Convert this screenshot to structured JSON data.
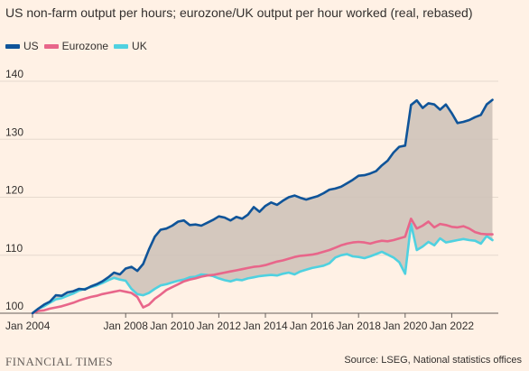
{
  "chart_data": {
    "type": "line",
    "title": "US non-farm output per hours; eurozone/UK output per hour worked (real, rebased)",
    "xlabel": "",
    "ylabel": "",
    "ylim": [
      100,
      140
    ],
    "yticks": [
      100,
      110,
      120,
      130,
      140
    ],
    "xlim": [
      2004.0,
      2024.0
    ],
    "xticks": [
      {
        "x": 2004,
        "label": "Jan 2004"
      },
      {
        "x": 2008,
        "label": "Jan 2008"
      },
      {
        "x": 2010,
        "label": "Jan 2010"
      },
      {
        "x": 2012,
        "label": "Jan 2012"
      },
      {
        "x": 2014,
        "label": "Jan 2014"
      },
      {
        "x": 2016,
        "label": "Jan 2016"
      },
      {
        "x": 2018,
        "label": "Jan 2018"
      },
      {
        "x": 2020,
        "label": "Jan 2020"
      },
      {
        "x": 2022,
        "label": "Jan 2022"
      }
    ],
    "grid": true,
    "legend_position": "top-left",
    "shaded_band": {
      "between": [
        "US",
        "UK"
      ],
      "color": "#ccc1b7"
    },
    "series": [
      {
        "name": "US",
        "color": "#0f5499",
        "x": [
          2004.0,
          2004.25,
          2004.5,
          2004.75,
          2005.0,
          2005.25,
          2005.5,
          2005.75,
          2006.0,
          2006.25,
          2006.5,
          2006.75,
          2007.0,
          2007.25,
          2007.5,
          2007.75,
          2008.0,
          2008.25,
          2008.5,
          2008.75,
          2009.0,
          2009.25,
          2009.5,
          2009.75,
          2010.0,
          2010.25,
          2010.5,
          2010.75,
          2011.0,
          2011.25,
          2011.5,
          2011.75,
          2012.0,
          2012.25,
          2012.5,
          2012.75,
          2013.0,
          2013.25,
          2013.5,
          2013.75,
          2014.0,
          2014.25,
          2014.5,
          2014.75,
          2015.0,
          2015.25,
          2015.5,
          2015.75,
          2016.0,
          2016.25,
          2016.5,
          2016.75,
          2017.0,
          2017.25,
          2017.5,
          2017.75,
          2018.0,
          2018.25,
          2018.5,
          2018.75,
          2019.0,
          2019.25,
          2019.5,
          2019.75,
          2020.0,
          2020.25,
          2020.5,
          2020.75,
          2021.0,
          2021.25,
          2021.5,
          2021.75,
          2022.0,
          2022.25,
          2022.5,
          2022.75,
          2023.0,
          2023.25,
          2023.5,
          2023.75
        ],
        "values": [
          100.0,
          100.8,
          101.5,
          102.0,
          103.1,
          103.0,
          103.6,
          103.8,
          104.2,
          104.1,
          104.6,
          105.0,
          105.5,
          106.2,
          107.0,
          106.7,
          107.7,
          108.0,
          107.3,
          108.5,
          111.0,
          113.2,
          114.4,
          114.6,
          115.1,
          115.8,
          116.0,
          115.2,
          115.3,
          115.1,
          115.6,
          116.1,
          116.7,
          116.5,
          116.0,
          116.6,
          116.3,
          117.0,
          118.3,
          117.5,
          118.5,
          119.1,
          118.7,
          119.4,
          120.0,
          120.3,
          119.9,
          119.6,
          119.9,
          120.2,
          120.7,
          121.3,
          121.5,
          121.8,
          122.4,
          123.0,
          123.7,
          123.8,
          124.1,
          124.5,
          125.5,
          126.3,
          127.7,
          128.7,
          128.9,
          135.9,
          136.7,
          135.4,
          136.2,
          136.0,
          135.1,
          136.0,
          134.5,
          132.8,
          133.0,
          133.3,
          133.8,
          134.2,
          136.0,
          136.8
        ]
      },
      {
        "name": "Eurozone",
        "color": "#e8668a",
        "x": [
          2004.0,
          2004.25,
          2004.5,
          2004.75,
          2005.0,
          2005.25,
          2005.5,
          2005.75,
          2006.0,
          2006.25,
          2006.5,
          2006.75,
          2007.0,
          2007.25,
          2007.5,
          2007.75,
          2008.0,
          2008.25,
          2008.5,
          2008.75,
          2009.0,
          2009.25,
          2009.5,
          2009.75,
          2010.0,
          2010.25,
          2010.5,
          2010.75,
          2011.0,
          2011.25,
          2011.5,
          2011.75,
          2012.0,
          2012.25,
          2012.5,
          2012.75,
          2013.0,
          2013.25,
          2013.5,
          2013.75,
          2014.0,
          2014.25,
          2014.5,
          2014.75,
          2015.0,
          2015.25,
          2015.5,
          2015.75,
          2016.0,
          2016.25,
          2016.5,
          2016.75,
          2017.0,
          2017.25,
          2017.5,
          2017.75,
          2018.0,
          2018.25,
          2018.5,
          2018.75,
          2019.0,
          2019.25,
          2019.5,
          2019.75,
          2020.0,
          2020.25,
          2020.5,
          2020.75,
          2021.0,
          2021.25,
          2021.5,
          2021.75,
          2022.0,
          2022.25,
          2022.5,
          2022.75,
          2023.0,
          2023.25,
          2023.5,
          2023.75
        ],
        "values": [
          100.0,
          100.4,
          100.5,
          100.8,
          101.0,
          101.2,
          101.5,
          101.8,
          102.2,
          102.5,
          102.8,
          103.0,
          103.3,
          103.5,
          103.7,
          103.9,
          103.7,
          103.5,
          102.8,
          101.0,
          101.5,
          102.5,
          103.2,
          104.0,
          104.5,
          105.0,
          105.5,
          105.8,
          106.0,
          106.3,
          106.5,
          106.6,
          106.8,
          107.0,
          107.2,
          107.4,
          107.6,
          107.8,
          108.0,
          108.1,
          108.3,
          108.6,
          108.9,
          109.1,
          109.4,
          109.7,
          109.9,
          110.0,
          110.1,
          110.3,
          110.6,
          110.9,
          111.3,
          111.7,
          112.0,
          112.2,
          112.3,
          112.2,
          112.0,
          112.3,
          112.5,
          112.4,
          112.6,
          112.9,
          113.2,
          116.3,
          114.6,
          115.1,
          115.8,
          114.8,
          115.4,
          115.2,
          114.9,
          114.8,
          115.0,
          114.6,
          114.0,
          113.7,
          113.6,
          113.6
        ]
      },
      {
        "name": "UK",
        "color": "#4fd1e0",
        "x": [
          2004.0,
          2004.25,
          2004.5,
          2004.75,
          2005.0,
          2005.25,
          2005.5,
          2005.75,
          2006.0,
          2006.25,
          2006.5,
          2006.75,
          2007.0,
          2007.25,
          2007.5,
          2007.75,
          2008.0,
          2008.25,
          2008.5,
          2008.75,
          2009.0,
          2009.25,
          2009.5,
          2009.75,
          2010.0,
          2010.25,
          2010.5,
          2010.75,
          2011.0,
          2011.25,
          2011.5,
          2011.75,
          2012.0,
          2012.25,
          2012.5,
          2012.75,
          2013.0,
          2013.25,
          2013.5,
          2013.75,
          2014.0,
          2014.25,
          2014.5,
          2014.75,
          2015.0,
          2015.25,
          2015.5,
          2015.75,
          2016.0,
          2016.25,
          2016.5,
          2016.75,
          2017.0,
          2017.25,
          2017.5,
          2017.75,
          2018.0,
          2018.25,
          2018.5,
          2018.75,
          2019.0,
          2019.25,
          2019.5,
          2019.75,
          2020.0,
          2020.25,
          2020.5,
          2020.75,
          2021.0,
          2021.25,
          2021.5,
          2021.75,
          2022.0,
          2022.25,
          2022.5,
          2022.75,
          2023.0,
          2023.25,
          2023.5,
          2023.75
        ],
        "values": [
          100.0,
          100.8,
          101.2,
          101.8,
          102.4,
          102.6,
          103.0,
          103.4,
          103.9,
          104.2,
          104.5,
          104.8,
          105.2,
          105.7,
          106.1,
          105.8,
          105.6,
          104.2,
          103.3,
          103.1,
          103.5,
          104.2,
          104.8,
          105.0,
          105.3,
          105.6,
          105.8,
          106.2,
          106.3,
          106.7,
          106.6,
          106.4,
          106.0,
          105.7,
          105.5,
          105.8,
          105.7,
          106.0,
          106.2,
          106.4,
          106.5,
          106.6,
          106.5,
          106.8,
          107.0,
          106.7,
          107.2,
          107.5,
          107.8,
          108.0,
          108.2,
          108.6,
          109.6,
          110.0,
          110.2,
          109.8,
          109.7,
          109.5,
          109.8,
          110.2,
          110.6,
          110.1,
          109.6,
          108.8,
          106.8,
          115.4,
          110.9,
          111.5,
          112.3,
          111.7,
          112.9,
          112.2,
          112.4,
          112.6,
          112.8,
          112.6,
          112.5,
          112.0,
          113.3,
          112.6
        ]
      }
    ]
  },
  "footer": {
    "brand": "FINANCIAL TIMES",
    "source": "Source: LSEG, National statistics offices"
  }
}
